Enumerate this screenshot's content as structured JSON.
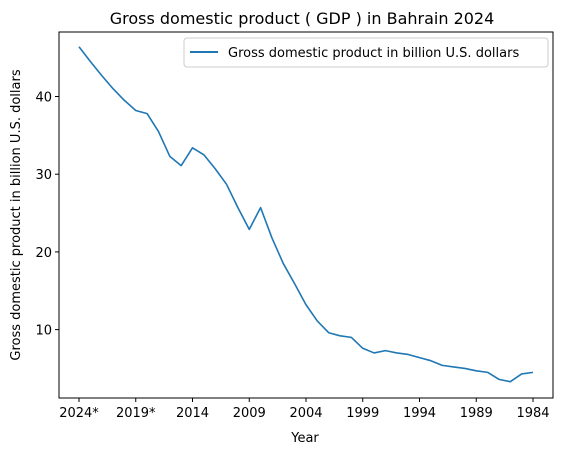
{
  "chart_data": {
    "type": "line",
    "title": "Gross domestic product ( GDP ) in Bahrain 2024",
    "xlabel": "Year",
    "ylabel": "Gross domestic product in billion U.S. dollars",
    "x": [
      "2024*",
      "2023*",
      "2022*",
      "2021*",
      "2020*",
      "2019*",
      "2018",
      "2017",
      "2016",
      "2015",
      "2014",
      "2013",
      "2012",
      "2011",
      "2010",
      "2009",
      "2008",
      "2007",
      "2006",
      "2005",
      "2004",
      "2003",
      "2002",
      "2001",
      "2000",
      "1999",
      "1998",
      "1997",
      "1996",
      "1995",
      "1994",
      "1993",
      "1992",
      "1991",
      "1990",
      "1989",
      "1988",
      "1987",
      "1986",
      "1985",
      "1984"
    ],
    "x_ticks": [
      "2024*",
      "2019*",
      "2014",
      "2009",
      "2004",
      "1999",
      "1994",
      "1989",
      "1984"
    ],
    "x_order": "descending",
    "y_ticks": [
      10,
      20,
      30,
      40
    ],
    "ylim": [
      1.2,
      48.3
    ],
    "grid": false,
    "legend_position": "top-right",
    "series": [
      {
        "name": "Gross domestic product in billion U.S. dollars",
        "color": "#1f77b4",
        "values": [
          46.4,
          44.5,
          42.7,
          41.0,
          39.5,
          38.2,
          37.8,
          35.5,
          32.3,
          31.1,
          33.4,
          32.5,
          30.7,
          28.7,
          25.7,
          22.9,
          25.7,
          21.8,
          18.5,
          15.9,
          13.2,
          11.1,
          9.6,
          9.2,
          9.0,
          7.6,
          7.0,
          7.3,
          7.0,
          6.8,
          6.4,
          6.0,
          5.4,
          5.2,
          5.0,
          4.7,
          4.5,
          3.6,
          3.3,
          4.3,
          4.5
        ]
      }
    ]
  }
}
